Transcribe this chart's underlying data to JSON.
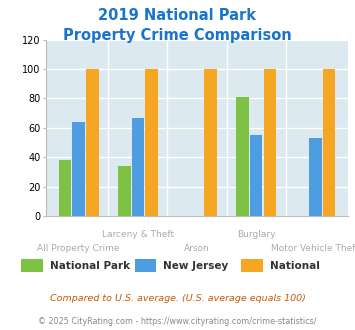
{
  "title_line1": "2019 National Park",
  "title_line2": "Property Crime Comparison",
  "title_color": "#1874cd",
  "categories": [
    "All Property Crime",
    "Larceny & Theft",
    "Arson",
    "Burglary",
    "Motor Vehicle Theft"
  ],
  "series": {
    "National Park": [
      38,
      34,
      0,
      81,
      0
    ],
    "New Jersey": [
      64,
      67,
      0,
      55,
      53
    ],
    "National": [
      100,
      100,
      100,
      100,
      100
    ]
  },
  "series_colors": {
    "National Park": "#7dc242",
    "New Jersey": "#4d9de0",
    "National": "#f5a623"
  },
  "ylim": [
    0,
    120
  ],
  "yticks": [
    0,
    20,
    40,
    60,
    80,
    100,
    120
  ],
  "plot_bg_color": "#dce9f0",
  "grid_color": "#ffffff",
  "xlabel_color": "#aaaaaa",
  "legend_label_color": "#333333",
  "footnote1": "Compared to U.S. average. (U.S. average equals 100)",
  "footnote2": "© 2025 CityRating.com - https://www.cityrating.com/crime-statistics/",
  "footnote1_color": "#cc5500",
  "footnote2_color": "#888888",
  "cat_labels_top": [
    "",
    "Larceny & Theft",
    "",
    "Burglary",
    ""
  ],
  "cat_labels_bot": [
    "All Property Crime",
    "",
    "Arson",
    "",
    "Motor Vehicle Theft"
  ]
}
